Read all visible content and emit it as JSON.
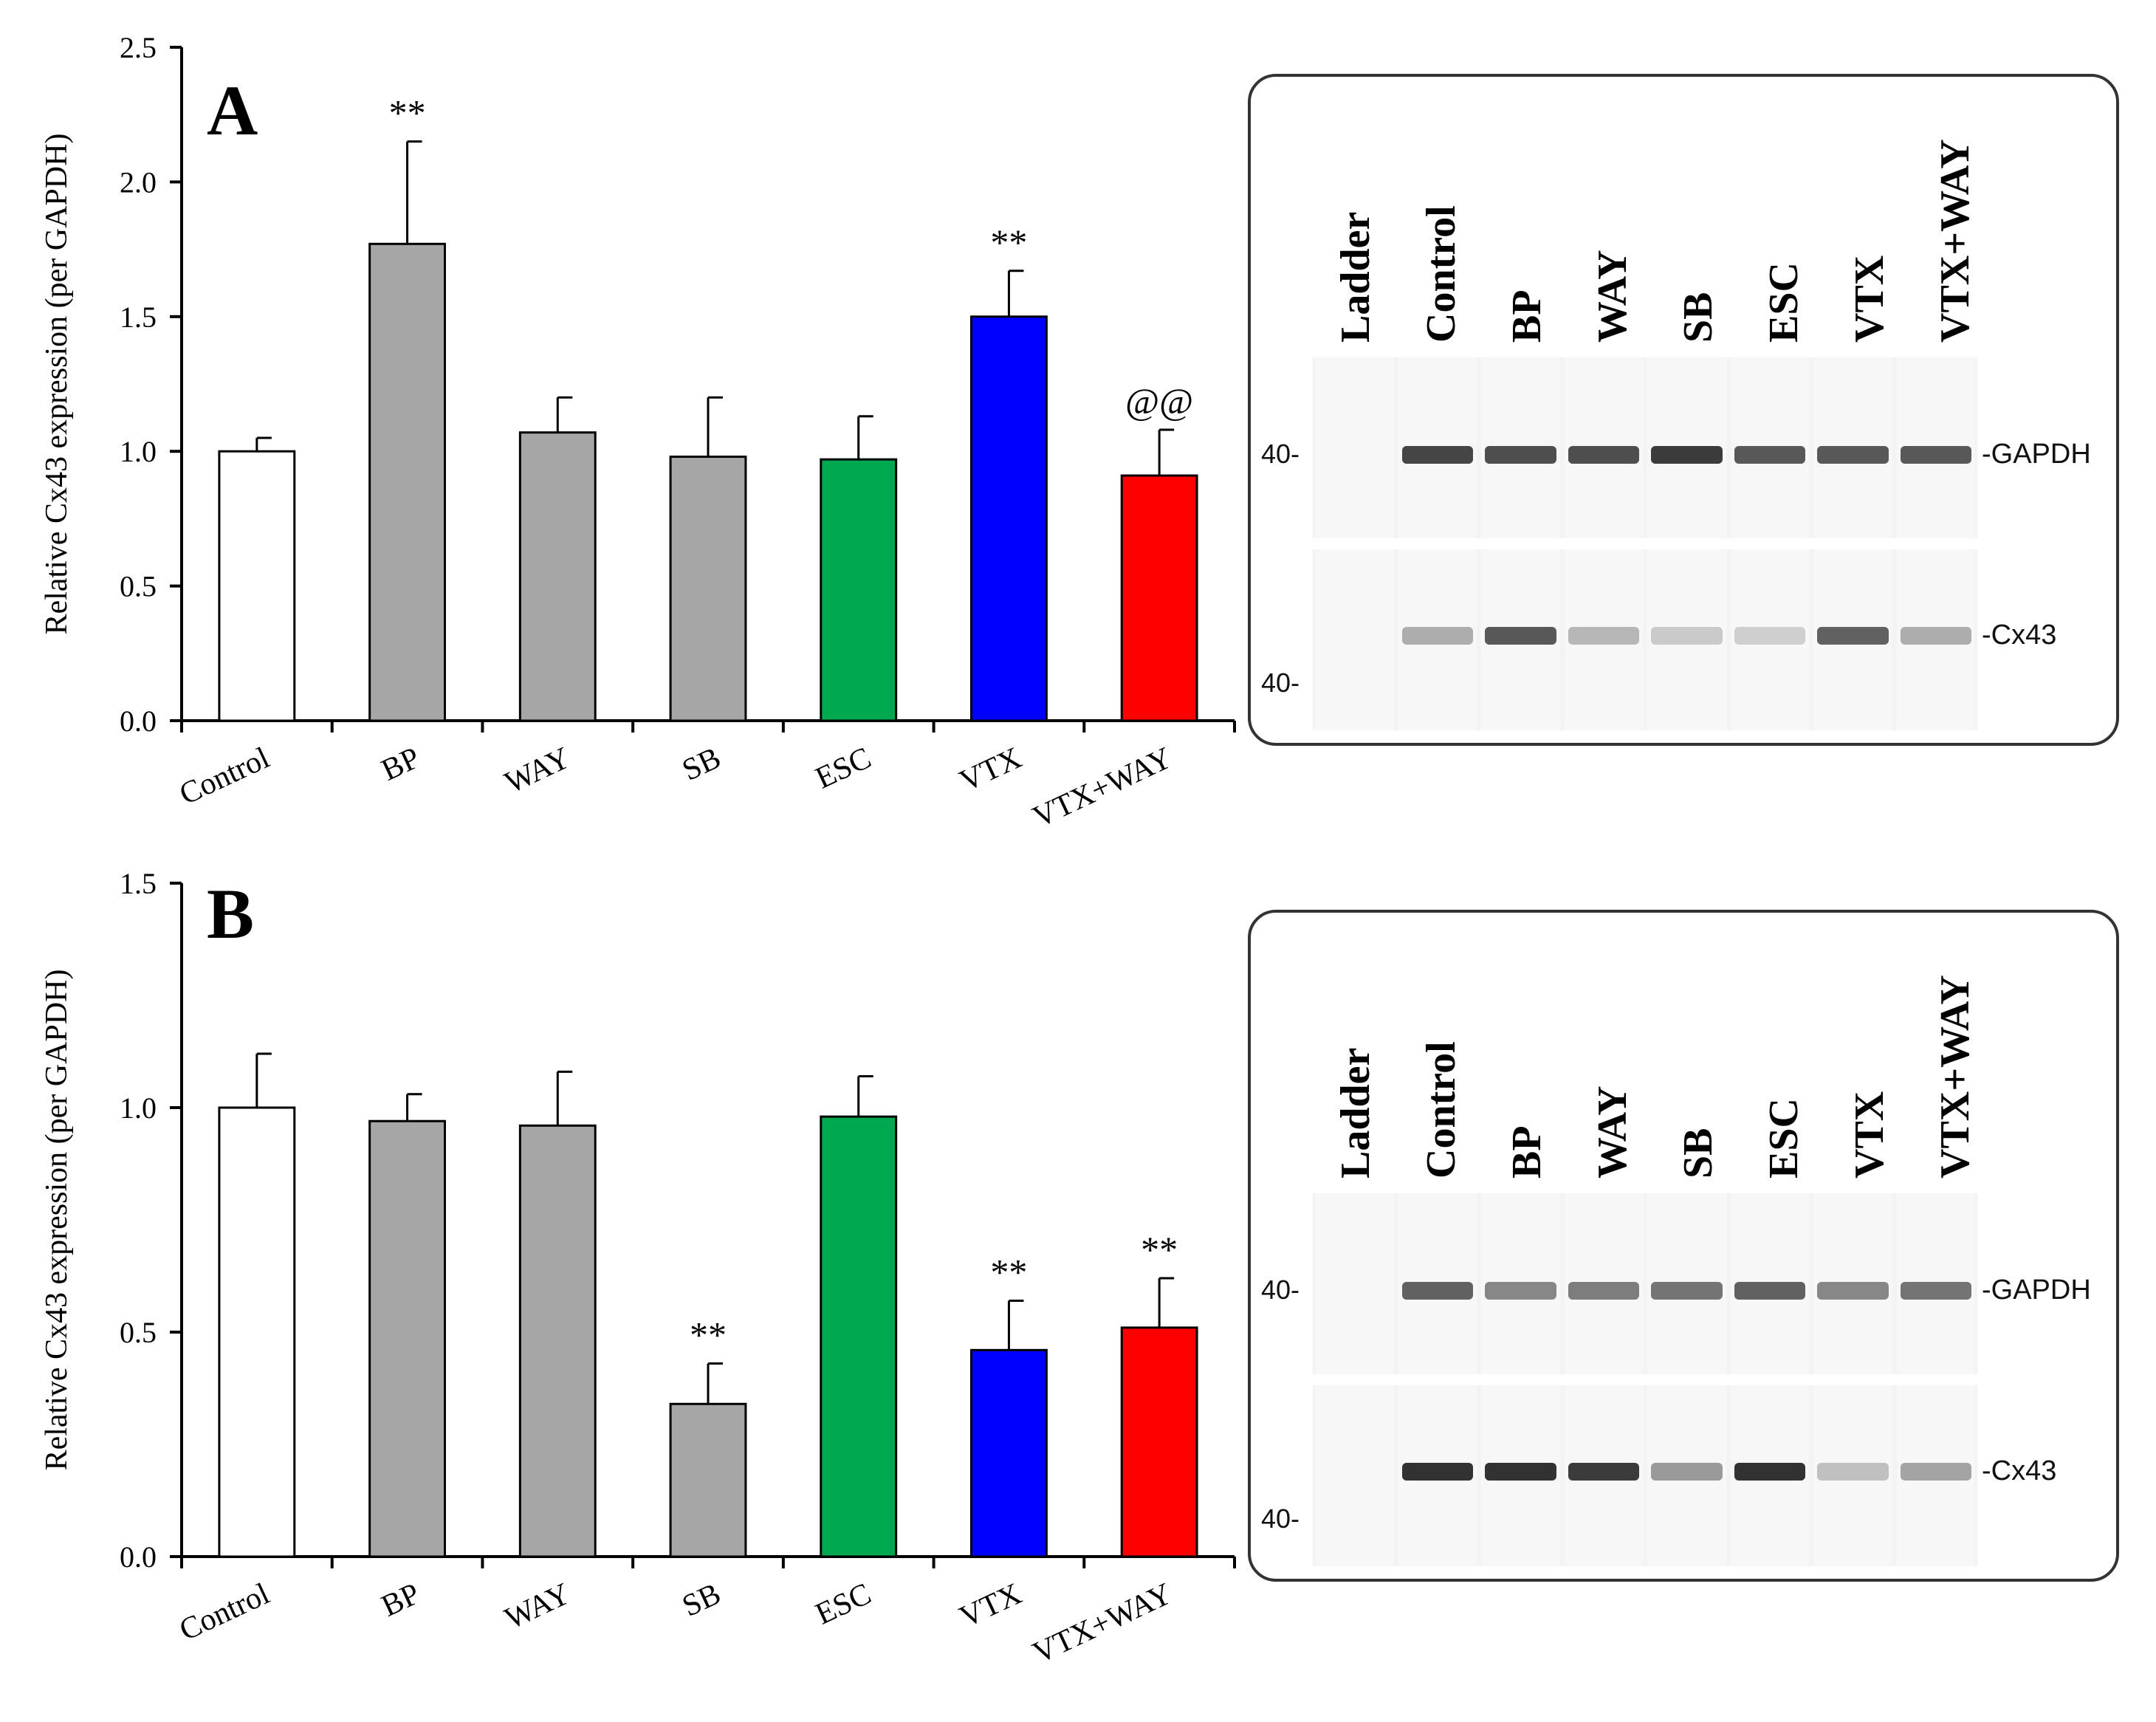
{
  "chart_data": [
    {
      "type": "bar",
      "panel": "A",
      "title": "",
      "ylabel": "Relative Cx43 expression (per GAPDH)",
      "xlabel": "",
      "ylim": [
        0,
        2.5
      ],
      "yticks": [
        "0.0",
        "0.5",
        "1.0",
        "1.5",
        "2.0",
        "2.5"
      ],
      "categories": [
        "Control",
        "BP",
        "WAY",
        "SB",
        "ESC",
        "VTX",
        "VTX+WAY"
      ],
      "values": [
        1.0,
        1.77,
        1.07,
        0.98,
        0.97,
        1.5,
        0.91
      ],
      "errors": [
        0.05,
        0.38,
        0.13,
        0.22,
        0.16,
        0.17,
        0.17
      ],
      "colors": [
        "#ffffff",
        "#a6a6a6",
        "#a6a6a6",
        "#a6a6a6",
        "#00a84f",
        "#0000ff",
        "#ff0000"
      ],
      "annotations": [
        "",
        "**",
        "",
        "",
        "",
        "**",
        "@@"
      ]
    },
    {
      "type": "bar",
      "panel": "B",
      "title": "",
      "ylabel": "Relative Cx43 expression (per GAPDH)",
      "xlabel": "",
      "ylim": [
        0,
        1.5
      ],
      "yticks": [
        "0.0",
        "0.5",
        "1.0",
        "1.5"
      ],
      "categories": [
        "Control",
        "BP",
        "WAY",
        "SB",
        "ESC",
        "VTX",
        "VTX+WAY"
      ],
      "values": [
        1.0,
        0.97,
        0.96,
        0.34,
        0.98,
        0.46,
        0.51
      ],
      "errors": [
        0.12,
        0.06,
        0.12,
        0.09,
        0.09,
        0.11,
        0.11
      ],
      "colors": [
        "#ffffff",
        "#a6a6a6",
        "#a6a6a6",
        "#a6a6a6",
        "#00a84f",
        "#0000ff",
        "#ff0000"
      ],
      "annotations": [
        "",
        "",
        "",
        "**",
        "",
        "**",
        "**"
      ]
    }
  ],
  "blots": [
    {
      "panel": "A",
      "lanes": [
        "Ladder",
        "Control",
        "BP",
        "WAY",
        "SB",
        "ESC",
        "VTX",
        "VTX+WAY"
      ],
      "mw_marker": "40-",
      "rows": [
        {
          "label": "GAPDH",
          "intensities": [
            0,
            0.85,
            0.8,
            0.8,
            0.9,
            0.75,
            0.75,
            0.75
          ]
        },
        {
          "label": "Cx43",
          "intensities": [
            0,
            0.3,
            0.75,
            0.25,
            0.15,
            0.12,
            0.7,
            0.3
          ]
        }
      ]
    },
    {
      "panel": "B",
      "lanes": [
        "Ladder",
        "Control",
        "BP",
        "WAY",
        "SB",
        "ESC",
        "VTX",
        "VTX+WAY"
      ],
      "mw_marker": "40-",
      "rows": [
        {
          "label": "GAPDH",
          "intensities": [
            0,
            0.7,
            0.5,
            0.55,
            0.6,
            0.7,
            0.5,
            0.6
          ]
        },
        {
          "label": "Cx43",
          "intensities": [
            0,
            0.95,
            0.95,
            0.9,
            0.4,
            0.95,
            0.2,
            0.35
          ]
        }
      ]
    }
  ]
}
